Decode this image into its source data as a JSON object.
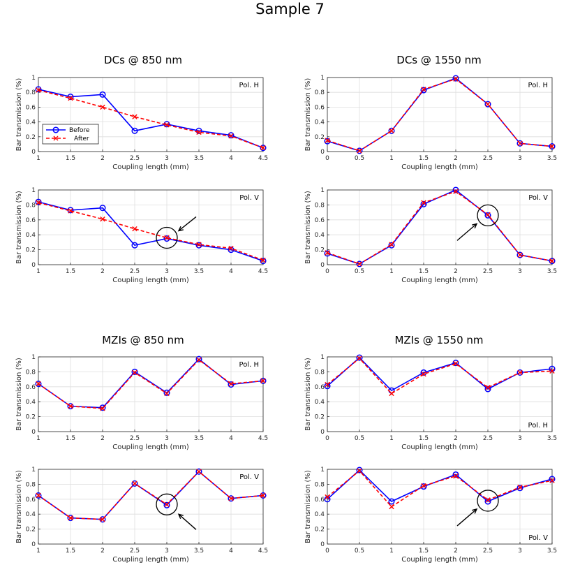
{
  "figure_title": "Sample 7",
  "section_titles": [
    "DCs @ 850 nm",
    "DCs @ 1550 nm",
    "MZIs @ 850 nm",
    "MZIs @ 1550 nm"
  ],
  "colors": {
    "before": "#0000ff",
    "after": "#ff0000",
    "grid": "#dedede",
    "axis": "#262626"
  },
  "legend": {
    "before": "Before",
    "after": "After"
  },
  "chart_data": [
    {
      "id": "dc850-h",
      "type": "line",
      "panel_label": "Pol. H",
      "label_position": "top-right",
      "xlabel": "Coupling length (mm)",
      "ylabel": "Bar transmission (%)",
      "xlim": [
        1,
        4.5
      ],
      "ylim": [
        0,
        1
      ],
      "xticks": [
        1,
        1.5,
        2,
        2.5,
        3,
        3.5,
        4,
        4.5
      ],
      "xtick_labels": [
        "1",
        "1.5",
        "2",
        "2.5",
        "3",
        "3.5",
        "4",
        "4.5"
      ],
      "yticks": [
        0,
        0.2,
        0.4,
        0.6,
        0.8,
        1
      ],
      "ytick_labels": [
        "0",
        "0.2",
        "0.4",
        "0.6",
        "0.8",
        "1"
      ],
      "x": [
        1,
        1.5,
        2,
        2.5,
        3,
        3.5,
        4,
        4.5
      ],
      "series": [
        {
          "name": "Before",
          "values": [
            0.84,
            0.74,
            0.77,
            0.28,
            0.37,
            0.28,
            0.22,
            0.05
          ]
        },
        {
          "name": "After",
          "values": [
            0.83,
            0.72,
            0.6,
            0.47,
            0.36,
            0.26,
            0.21,
            0.05
          ]
        }
      ],
      "legend": "top-left",
      "grid": true
    },
    {
      "id": "dc1550-h",
      "type": "line",
      "panel_label": "Pol. H",
      "label_position": "top-right",
      "xlabel": "Coupling length (mm)",
      "ylabel": "Bar transmission (%)",
      "xlim": [
        0,
        3.5
      ],
      "ylim": [
        0,
        1
      ],
      "xticks": [
        0,
        0.5,
        1,
        1.5,
        2,
        2.5,
        3,
        3.5
      ],
      "xtick_labels": [
        "0",
        "0.5",
        "1",
        "1.5",
        "2",
        "2.5",
        "3",
        "3.5"
      ],
      "yticks": [
        0,
        0.2,
        0.4,
        0.6,
        0.8,
        1
      ],
      "ytick_labels": [
        "0",
        "0.2",
        "0.4",
        "0.6",
        "0.8",
        "1"
      ],
      "x": [
        0,
        0.5,
        1,
        1.5,
        2,
        2.5,
        3,
        3.5
      ],
      "series": [
        {
          "name": "Before",
          "values": [
            0.14,
            0.01,
            0.28,
            0.83,
            0.99,
            0.64,
            0.11,
            0.07
          ]
        },
        {
          "name": "After",
          "values": [
            0.15,
            0.01,
            0.28,
            0.84,
            0.98,
            0.64,
            0.11,
            0.07
          ]
        }
      ],
      "grid": true
    },
    {
      "id": "dc850-v",
      "type": "line",
      "panel_label": "Pol. V",
      "label_position": "top-right",
      "xlabel": "Coupling length (mm)",
      "ylabel": "Bar transmission (%)",
      "xlim": [
        1,
        4.5
      ],
      "ylim": [
        0,
        1
      ],
      "xticks": [
        1,
        1.5,
        2,
        2.5,
        3,
        3.5,
        4,
        4.5
      ],
      "xtick_labels": [
        "1",
        "1.5",
        "2",
        "2.5",
        "3",
        "3.5",
        "4",
        "4.5"
      ],
      "yticks": [
        0,
        0.2,
        0.4,
        0.6,
        0.8,
        1
      ],
      "ytick_labels": [
        "0",
        "0.2",
        "0.4",
        "0.6",
        "0.8",
        "1"
      ],
      "x": [
        1,
        1.5,
        2,
        2.5,
        3,
        3.5,
        4,
        4.5
      ],
      "series": [
        {
          "name": "Before",
          "values": [
            0.84,
            0.73,
            0.76,
            0.26,
            0.35,
            0.26,
            0.2,
            0.05
          ]
        },
        {
          "name": "After",
          "values": [
            0.83,
            0.72,
            0.61,
            0.48,
            0.36,
            0.27,
            0.22,
            0.06
          ]
        }
      ],
      "annotations": [
        {
          "type": "circle",
          "x": 3,
          "y": 0.36
        },
        {
          "type": "arrow",
          "direction": "from-upper-right",
          "x": 3,
          "y": 0.36
        }
      ],
      "grid": true
    },
    {
      "id": "dc1550-v",
      "type": "line",
      "panel_label": "Pol. V",
      "label_position": "top-right",
      "xlabel": "Coupling length (mm)",
      "ylabel": "Bar transmission (%)",
      "xlim": [
        0,
        3.5
      ],
      "ylim": [
        0,
        1
      ],
      "xticks": [
        0,
        0.5,
        1,
        1.5,
        2,
        2.5,
        3,
        3.5
      ],
      "xtick_labels": [
        "0",
        "0.5",
        "1",
        "1.5",
        "2",
        "2.5",
        "3",
        "3.5"
      ],
      "yticks": [
        0,
        0.2,
        0.4,
        0.6,
        0.8,
        1
      ],
      "ytick_labels": [
        "0",
        "0.2",
        "0.4",
        "0.6",
        "0.8",
        "1"
      ],
      "x": [
        0,
        0.5,
        1,
        1.5,
        2,
        2.5,
        3,
        3.5
      ],
      "series": [
        {
          "name": "Before",
          "values": [
            0.15,
            0.01,
            0.26,
            0.81,
            1.0,
            0.66,
            0.13,
            0.05
          ]
        },
        {
          "name": "After",
          "values": [
            0.16,
            0.01,
            0.27,
            0.83,
            0.98,
            0.67,
            0.13,
            0.05
          ]
        }
      ],
      "annotations": [
        {
          "type": "circle",
          "x": 2.5,
          "y": 0.66
        },
        {
          "type": "arrow",
          "direction": "from-lower-left",
          "x": 2.5,
          "y": 0.66
        }
      ],
      "grid": true
    },
    {
      "id": "mzi850-h",
      "type": "line",
      "panel_label": "Pol. H",
      "label_position": "top-right",
      "xlabel": "Coupling length (mm)",
      "ylabel": "Bar transmission (%)",
      "xlim": [
        1,
        4.5
      ],
      "ylim": [
        0,
        1
      ],
      "xticks": [
        1,
        1.5,
        2,
        2.5,
        3,
        3.5,
        4,
        4.5
      ],
      "xtick_labels": [
        "1",
        "1.5",
        "2",
        "2.5",
        "3",
        "3.5",
        "4",
        "4.5"
      ],
      "yticks": [
        0,
        0.2,
        0.4,
        0.6,
        0.8,
        1
      ],
      "ytick_labels": [
        "0",
        "0.2",
        "0.4",
        "0.6",
        "0.8",
        "1"
      ],
      "x": [
        1,
        1.5,
        2,
        2.5,
        3,
        3.5,
        4,
        4.5
      ],
      "series": [
        {
          "name": "Before",
          "values": [
            0.64,
            0.34,
            0.32,
            0.8,
            0.52,
            0.97,
            0.63,
            0.68
          ]
        },
        {
          "name": "After",
          "values": [
            0.64,
            0.34,
            0.31,
            0.79,
            0.51,
            0.96,
            0.64,
            0.68
          ]
        }
      ],
      "grid": true
    },
    {
      "id": "mzi1550-h",
      "type": "line",
      "panel_label": "Pol. H",
      "label_position": "bottom-right",
      "xlabel": "Coupling length (mm)",
      "ylabel": "Bar transmission (%)",
      "xlim": [
        0,
        3.5
      ],
      "ylim": [
        0,
        1
      ],
      "xticks": [
        0,
        0.5,
        1,
        1.5,
        2,
        2.5,
        3,
        3.5
      ],
      "xtick_labels": [
        "0",
        "0.5",
        "1",
        "1.5",
        "2",
        "2.5",
        "3",
        "3.5"
      ],
      "yticks": [
        0,
        0.2,
        0.4,
        0.6,
        0.8,
        1
      ],
      "ytick_labels": [
        "0",
        "0.2",
        "0.4",
        "0.6",
        "0.8",
        "1"
      ],
      "x": [
        0,
        0.5,
        1,
        1.5,
        2,
        2.5,
        3,
        3.5
      ],
      "series": [
        {
          "name": "Before",
          "values": [
            0.61,
            0.99,
            0.55,
            0.79,
            0.92,
            0.57,
            0.79,
            0.84
          ]
        },
        {
          "name": "After",
          "values": [
            0.63,
            0.98,
            0.51,
            0.77,
            0.91,
            0.59,
            0.79,
            0.81
          ]
        }
      ],
      "grid": true
    },
    {
      "id": "mzi850-v",
      "type": "line",
      "panel_label": "Pol. V",
      "label_position": "top-right",
      "xlabel": "Coupling length (mm)",
      "ylabel": "Bar transmission (%)",
      "xlim": [
        1,
        4.5
      ],
      "ylim": [
        0,
        1
      ],
      "xticks": [
        1,
        1.5,
        2,
        2.5,
        3,
        3.5,
        4,
        4.5
      ],
      "xtick_labels": [
        "1",
        "1.5",
        "2",
        "2.5",
        "3",
        "3.5",
        "4",
        "4.5"
      ],
      "yticks": [
        0,
        0.2,
        0.4,
        0.6,
        0.8,
        1
      ],
      "ytick_labels": [
        "0",
        "0.2",
        "0.4",
        "0.6",
        "0.8",
        "1"
      ],
      "x": [
        1,
        1.5,
        2,
        2.5,
        3,
        3.5,
        4,
        4.5
      ],
      "series": [
        {
          "name": "Before",
          "values": [
            0.65,
            0.35,
            0.33,
            0.81,
            0.52,
            0.97,
            0.61,
            0.65
          ]
        },
        {
          "name": "After",
          "values": [
            0.65,
            0.35,
            0.33,
            0.81,
            0.53,
            0.97,
            0.61,
            0.65
          ]
        }
      ],
      "annotations": [
        {
          "type": "circle",
          "x": 3,
          "y": 0.53
        },
        {
          "type": "arrow",
          "direction": "from-lower-right",
          "x": 3,
          "y": 0.53
        }
      ],
      "grid": true
    },
    {
      "id": "mzi1550-v",
      "type": "line",
      "panel_label": "Pol. V",
      "label_position": "bottom-right",
      "xlabel": "Coupling length (mm)",
      "ylabel": "Bar transmission (%)",
      "xlim": [
        0,
        3.5
      ],
      "ylim": [
        0,
        1
      ],
      "xticks": [
        0,
        0.5,
        1,
        1.5,
        2,
        2.5,
        3,
        3.5
      ],
      "xtick_labels": [
        "0",
        "0.5",
        "1",
        "1.5",
        "2",
        "2.5",
        "3",
        "3.5"
      ],
      "yticks": [
        0,
        0.2,
        0.4,
        0.6,
        0.8,
        1
      ],
      "ytick_labels": [
        "0",
        "0.2",
        "0.4",
        "0.6",
        "0.8",
        "1"
      ],
      "x": [
        0,
        0.5,
        1,
        1.5,
        2,
        2.5,
        3,
        3.5
      ],
      "series": [
        {
          "name": "Before",
          "values": [
            0.6,
            0.99,
            0.57,
            0.77,
            0.93,
            0.57,
            0.75,
            0.87
          ]
        },
        {
          "name": "After",
          "values": [
            0.63,
            0.98,
            0.5,
            0.78,
            0.91,
            0.59,
            0.76,
            0.85
          ]
        }
      ],
      "annotations": [
        {
          "type": "circle",
          "x": 2.5,
          "y": 0.58
        },
        {
          "type": "arrow",
          "direction": "from-lower-left",
          "x": 2.5,
          "y": 0.58
        }
      ],
      "grid": true
    }
  ]
}
